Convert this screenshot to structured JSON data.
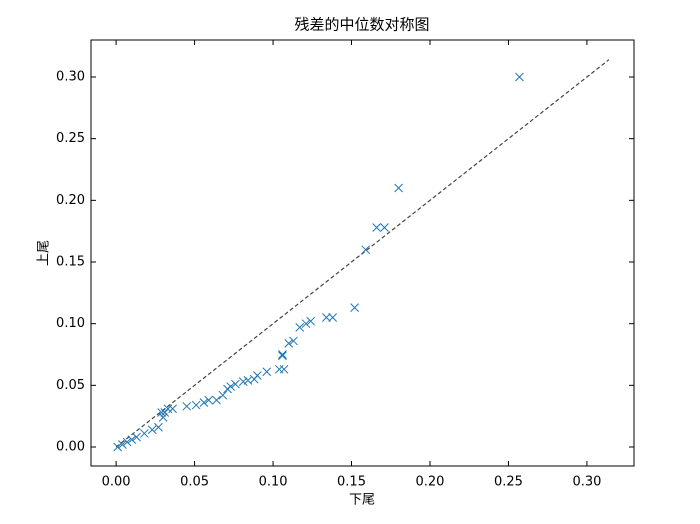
{
  "chart_data": {
    "type": "scatter",
    "title": "残差的中位数对称图",
    "x_label": "下尾",
    "y_label": "上尾",
    "marker": "x",
    "color": "#1f77b4",
    "x": [
      0.257,
      0.18,
      0.166,
      0.171,
      0.159,
      0.152,
      0.138,
      0.134,
      0.124,
      0.121,
      0.117,
      0.113,
      0.11,
      0.106,
      0.106,
      0.104,
      0.107,
      0.096,
      0.09,
      0.088,
      0.084,
      0.081,
      0.076,
      0.073,
      0.071,
      0.068,
      0.064,
      0.059,
      0.056,
      0.051,
      0.045,
      0.036,
      0.033,
      0.031,
      0.03,
      0.029,
      0.027,
      0.023,
      0.018,
      0.013,
      0.01,
      0.007,
      0.004,
      0.001
    ],
    "values": [
      0.3,
      0.21,
      0.178,
      0.178,
      0.16,
      0.113,
      0.105,
      0.105,
      0.102,
      0.1,
      0.097,
      0.086,
      0.084,
      0.075,
      0.074,
      0.063,
      0.063,
      0.061,
      0.058,
      0.055,
      0.054,
      0.053,
      0.051,
      0.049,
      0.047,
      0.042,
      0.038,
      0.038,
      0.036,
      0.034,
      0.033,
      0.031,
      0.031,
      0.028,
      0.024,
      0.028,
      0.016,
      0.014,
      0.011,
      0.008,
      0.006,
      0.004,
      0.002,
      0.0
    ],
    "reference_line": {
      "x": [
        0,
        0.314
      ],
      "y": [
        0,
        0.314
      ],
      "color": "#444444",
      "style": "dashed"
    },
    "xlim": [
      -0.016,
      0.33
    ],
    "ylim": [
      -0.0154,
      0.33
    ],
    "xticks": [
      {
        "value": 0,
        "label": "0.00"
      },
      {
        "value": 0.05,
        "label": "0.05"
      },
      {
        "value": 0.1,
        "label": "0.10"
      },
      {
        "value": 0.15,
        "label": "0.15"
      },
      {
        "value": 0.2,
        "label": "0.20"
      },
      {
        "value": 0.25,
        "label": "0.25"
      },
      {
        "value": 0.3,
        "label": "0.30"
      }
    ],
    "yticks": [
      {
        "value": 0,
        "label": "0.00"
      },
      {
        "value": 0.05,
        "label": "0.05"
      },
      {
        "value": 0.1,
        "label": "0.10"
      },
      {
        "value": 0.15,
        "label": "0.15"
      },
      {
        "value": 0.2,
        "label": "0.20"
      },
      {
        "value": 0.25,
        "label": "0.25"
      },
      {
        "value": 0.3,
        "label": "0.30"
      }
    ],
    "grid": false
  }
}
